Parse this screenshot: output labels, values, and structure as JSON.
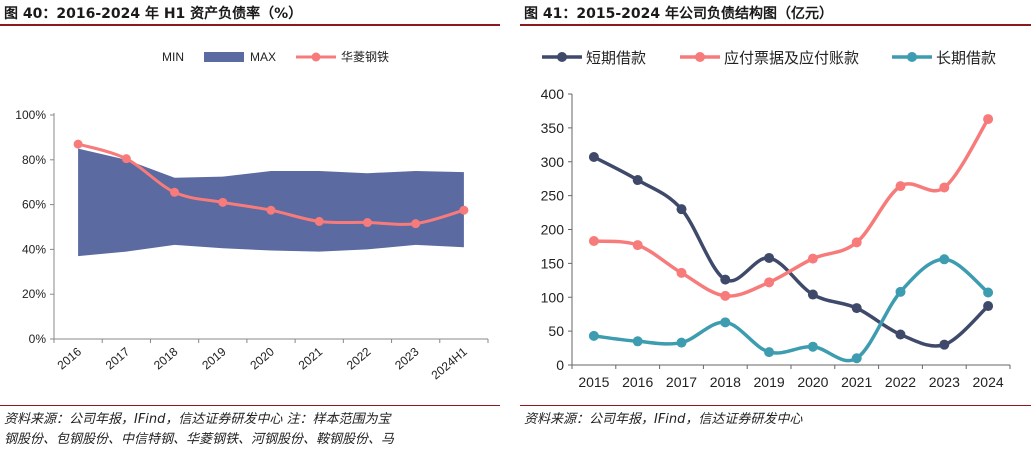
{
  "charts": [
    {
      "title": "图 40：2016-2024 年 H1 资产负债率（%）",
      "note_lines": [
        "资料来源：公司年报，IFind，信达证券研发中心 注：样本范围为宝",
        "钢股份、包钢股份、中信特钢、华菱钢铁、河钢股份、鞍钢股份、马"
      ]
    },
    {
      "title": "图 41：2015-2024 年公司负债结构图（亿元）",
      "note_lines": [
        "资料来源：公司年报，IFind，信达证券研发中心"
      ]
    }
  ],
  "chart_data": [
    {
      "type": "area",
      "categories": [
        "2016",
        "2017",
        "2018",
        "2019",
        "2020",
        "2021",
        "2022",
        "2023",
        "2024H1"
      ],
      "series": [
        {
          "name": "MIN",
          "values": [
            37,
            39,
            42,
            40.5,
            39.5,
            39,
            40,
            42,
            41
          ],
          "color": "#ffffff"
        },
        {
          "name": "MAX",
          "values": [
            85,
            80,
            72,
            72.5,
            75,
            75,
            74,
            75,
            74.5
          ],
          "color": "#5b6aa0"
        },
        {
          "name": "华菱钢铁",
          "values": [
            87,
            80.5,
            65.5,
            61,
            57.5,
            52.5,
            52,
            51.5,
            57.5
          ],
          "color": "#f77b7b"
        }
      ],
      "yticks": [
        "0%",
        "20%",
        "40%",
        "60%",
        "80%",
        "100%"
      ],
      "ylim": [
        0,
        100
      ],
      "legend": "top"
    },
    {
      "type": "line",
      "categories": [
        "2015",
        "2016",
        "2017",
        "2018",
        "2019",
        "2020",
        "2021",
        "2022",
        "2023",
        "2024"
      ],
      "series": [
        {
          "name": "短期借款",
          "values": [
            307,
            273,
            230,
            126,
            158,
            104,
            84,
            45,
            30,
            87
          ],
          "color": "#3f4a6b"
        },
        {
          "name": "应付票据及应付账款",
          "values": [
            183,
            177,
            136,
            102,
            122,
            157,
            181,
            264,
            262,
            363
          ],
          "color": "#f77b7b"
        },
        {
          "name": "长期借款",
          "values": [
            43,
            35,
            33,
            63,
            19,
            27,
            10,
            108,
            156,
            107
          ],
          "color": "#3d9cb0"
        }
      ],
      "yticks": [
        "0",
        "50",
        "100",
        "150",
        "200",
        "250",
        "300",
        "350",
        "400"
      ],
      "ylim": [
        0,
        400
      ],
      "legend": "top"
    }
  ]
}
